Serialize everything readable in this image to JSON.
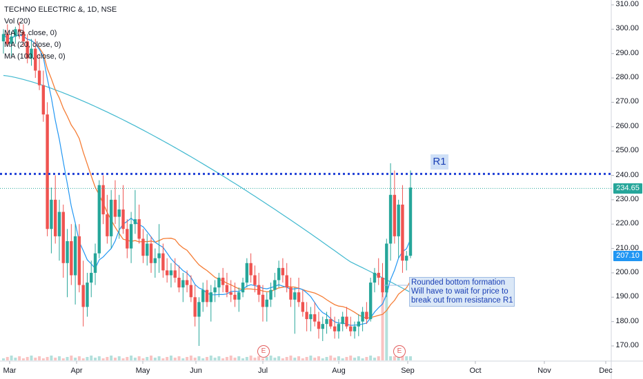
{
  "legend": {
    "title": "TECHNO ELECTRIC &, 1D, NSE",
    "vol": "Vol (20)",
    "ma9": "MA (9, close, 0)",
    "ma20": "MA (20, close, 0)",
    "ma100": "MA (100, close, 0)"
  },
  "price_tags": {
    "last": "234.65",
    "ma": "207.10"
  },
  "r1_label": "R1",
  "annotation": [
    "Rounded bottom formation",
    "Will have to wait for price to",
    "break out from resistance R1"
  ],
  "earnings_marker": "E",
  "colors": {
    "up": "#26a69a",
    "down": "#ef5350",
    "ma9": "#2196f3",
    "ma20": "#f57c34",
    "ma100": "#3fb8cf",
    "resistance": "#1f3fd6",
    "axis_text": "#131722"
  },
  "chart_data": {
    "type": "candlestick",
    "title": "TECHNO ELECTRIC &, 1D, NSE",
    "y_ticks": [
      170,
      180,
      190,
      200,
      210,
      220,
      230,
      240,
      250,
      260,
      270,
      280,
      290,
      300,
      310
    ],
    "ylim": [
      165,
      312
    ],
    "x_ticks": [
      "Mar",
      "Apr",
      "May",
      "Jun",
      "Jul",
      "Aug",
      "Sep",
      "Oct",
      "Nov",
      "Dec"
    ],
    "resistance": {
      "name": "R1",
      "value": 240.6
    },
    "last_price": 234.65,
    "ma_value": 207.1,
    "earnings": [
      "Jul",
      "Sep"
    ],
    "candles": [
      [
        295,
        300,
        290,
        298
      ],
      [
        298,
        302,
        293,
        294
      ],
      [
        294,
        299,
        289,
        297
      ],
      [
        297,
        301,
        294,
        300
      ],
      [
        300,
        303,
        296,
        299
      ],
      [
        299,
        302,
        293,
        295
      ],
      [
        295,
        298,
        286,
        288
      ],
      [
        288,
        296,
        285,
        292
      ],
      [
        292,
        296,
        280,
        283
      ],
      [
        283,
        290,
        275,
        277
      ],
      [
        277,
        283,
        262,
        265
      ],
      [
        265,
        270,
        215,
        218
      ],
      [
        218,
        235,
        208,
        230
      ],
      [
        230,
        240,
        212,
        215
      ],
      [
        215,
        230,
        205,
        225
      ],
      [
        225,
        228,
        198,
        204
      ],
      [
        204,
        218,
        190,
        213
      ],
      [
        213,
        220,
        195,
        199
      ],
      [
        199,
        220,
        187,
        215
      ],
      [
        215,
        220,
        192,
        195
      ],
      [
        195,
        205,
        178,
        186
      ],
      [
        186,
        200,
        182,
        196
      ],
      [
        196,
        205,
        190,
        200
      ],
      [
        200,
        212,
        195,
        208
      ],
      [
        208,
        238,
        206,
        236
      ],
      [
        236,
        240,
        220,
        224
      ],
      [
        224,
        232,
        212,
        215
      ],
      [
        215,
        234,
        210,
        230
      ],
      [
        230,
        238,
        220,
        223
      ],
      [
        223,
        232,
        214,
        226
      ],
      [
        226,
        236,
        216,
        218
      ],
      [
        218,
        222,
        206,
        210
      ],
      [
        210,
        225,
        204,
        220
      ],
      [
        220,
        234,
        216,
        222
      ],
      [
        222,
        228,
        212,
        214
      ],
      [
        214,
        218,
        204,
        207
      ],
      [
        207,
        216,
        203,
        212
      ],
      [
        212,
        215,
        200,
        204
      ],
      [
        204,
        210,
        198,
        206
      ],
      [
        206,
        220,
        200,
        208
      ],
      [
        208,
        212,
        198,
        201
      ],
      [
        201,
        206,
        196,
        199
      ],
      [
        199,
        204,
        194,
        201
      ],
      [
        201,
        206,
        196,
        198
      ],
      [
        198,
        203,
        192,
        194
      ],
      [
        194,
        200,
        188,
        197
      ],
      [
        197,
        201,
        192,
        195
      ],
      [
        195,
        199,
        188,
        190
      ],
      [
        190,
        195,
        178,
        182
      ],
      [
        182,
        190,
        170,
        188
      ],
      [
        188,
        196,
        184,
        193
      ],
      [
        193,
        197,
        186,
        188
      ],
      [
        188,
        195,
        180,
        192
      ],
      [
        192,
        197,
        188,
        194
      ],
      [
        194,
        200,
        190,
        198
      ],
      [
        198,
        202,
        192,
        195
      ],
      [
        195,
        200,
        190,
        192
      ],
      [
        192,
        197,
        188,
        191
      ],
      [
        191,
        196,
        186,
        189
      ],
      [
        189,
        194,
        184,
        192
      ],
      [
        192,
        198,
        190,
        196
      ],
      [
        196,
        206,
        194,
        204
      ],
      [
        204,
        208,
        196,
        199
      ],
      [
        199,
        203,
        192,
        195
      ],
      [
        195,
        200,
        188,
        191
      ],
      [
        191,
        195,
        180,
        186
      ],
      [
        186,
        192,
        180,
        189
      ],
      [
        189,
        196,
        186,
        193
      ],
      [
        193,
        200,
        190,
        197
      ],
      [
        197,
        205,
        194,
        202
      ],
      [
        202,
        206,
        196,
        199
      ],
      [
        199,
        204,
        192,
        194
      ],
      [
        194,
        198,
        186,
        189
      ],
      [
        189,
        194,
        175,
        192
      ],
      [
        192,
        198,
        186,
        188
      ],
      [
        188,
        193,
        182,
        184
      ],
      [
        184,
        188,
        176,
        181
      ],
      [
        181,
        186,
        176,
        183
      ],
      [
        183,
        188,
        178,
        180
      ],
      [
        180,
        184,
        173,
        177
      ],
      [
        177,
        182,
        172,
        179
      ],
      [
        179,
        184,
        175,
        181
      ],
      [
        181,
        186,
        177,
        178
      ],
      [
        178,
        182,
        173,
        176
      ],
      [
        176,
        181,
        173,
        179
      ],
      [
        179,
        184,
        176,
        182
      ],
      [
        182,
        186,
        177,
        178
      ],
      [
        178,
        182,
        174,
        176
      ],
      [
        176,
        180,
        173,
        178
      ],
      [
        178,
        183,
        174,
        180
      ],
      [
        180,
        186,
        176,
        184
      ],
      [
        184,
        188,
        179,
        181
      ],
      [
        181,
        198,
        180,
        196
      ],
      [
        196,
        202,
        192,
        200
      ],
      [
        200,
        206,
        195,
        198
      ],
      [
        198,
        204,
        190,
        192
      ],
      [
        192,
        214,
        190,
        212
      ],
      [
        212,
        245,
        205,
        232
      ],
      [
        232,
        242,
        212,
        215
      ],
      [
        215,
        230,
        206,
        228
      ],
      [
        228,
        236,
        200,
        205
      ],
      [
        205,
        209,
        201,
        207
      ],
      [
        207,
        242,
        206,
        235
      ]
    ]
  }
}
